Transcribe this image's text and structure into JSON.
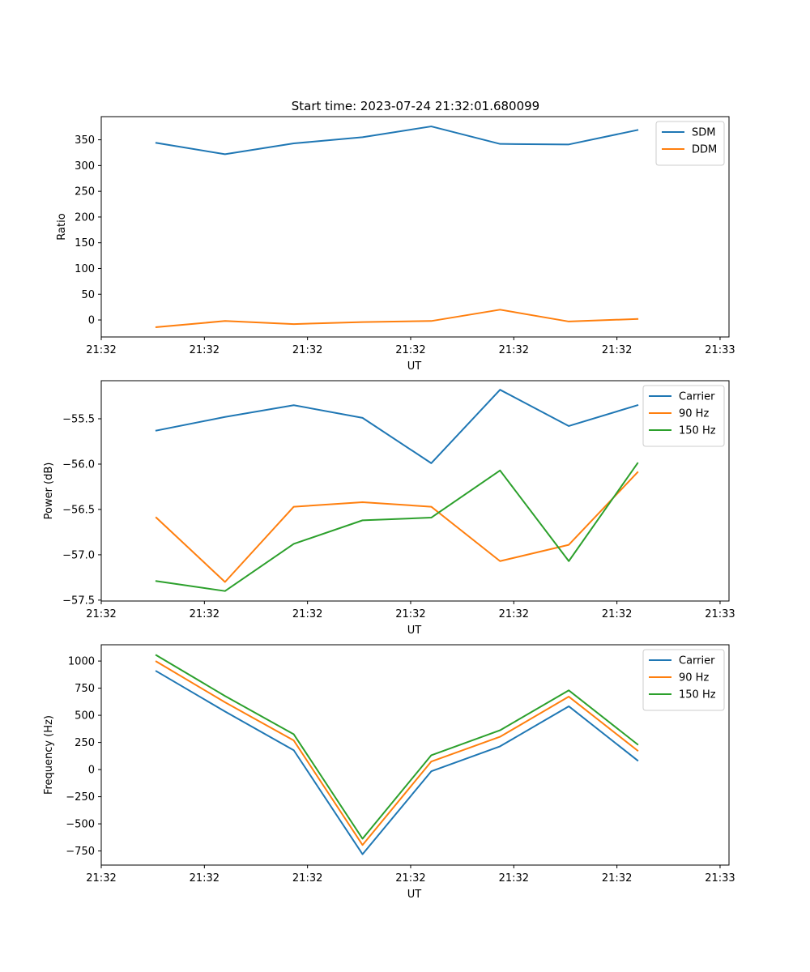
{
  "figure_title": "Start time: 2023-07-24 21:32:01.680099",
  "colors": {
    "blue": "#1f77b4",
    "orange": "#ff7f0e",
    "green": "#2ca02c"
  },
  "chart_data": [
    {
      "type": "line",
      "title": "Start time: 2023-07-24 21:32:01.680099",
      "xlabel": "UT",
      "ylabel": "Ratio",
      "legend_position": "top-right",
      "x": [
        1,
        2,
        3,
        4,
        5,
        6,
        7,
        8
      ],
      "xlim": [
        0.2,
        9.33
      ],
      "xticks": [
        0.2,
        1.7,
        3.2,
        4.7,
        6.2,
        7.7,
        9.2
      ],
      "xtick_labels": [
        "21:32",
        "21:32",
        "21:32",
        "21:32",
        "21:32",
        "21:32",
        "21:33"
      ],
      "ylim": [
        -33,
        395
      ],
      "yticks": [
        0,
        50,
        100,
        150,
        200,
        250,
        300,
        350
      ],
      "ytick_labels": [
        "0",
        "50",
        "100",
        "150",
        "200",
        "250",
        "300",
        "350"
      ],
      "series": [
        {
          "name": "SDM",
          "color": "#1f77b4",
          "values": [
            344,
            322,
            343,
            355,
            376,
            342,
            341,
            369
          ]
        },
        {
          "name": "DDM",
          "color": "#ff7f0e",
          "values": [
            -14,
            -2,
            -8,
            -4,
            -2,
            20,
            -3,
            2
          ]
        }
      ]
    },
    {
      "type": "line",
      "xlabel": "UT",
      "ylabel": "Power (dB)",
      "legend_position": "top-right",
      "x": [
        1,
        2,
        3,
        4,
        5,
        6,
        7,
        8
      ],
      "xlim": [
        0.2,
        9.33
      ],
      "xticks": [
        0.2,
        1.7,
        3.2,
        4.7,
        6.2,
        7.7,
        9.2
      ],
      "xtick_labels": [
        "21:32",
        "21:32",
        "21:32",
        "21:32",
        "21:32",
        "21:32",
        "21:33"
      ],
      "ylim": [
        -57.51,
        -55.08
      ],
      "yticks": [
        -57.5,
        -57.0,
        -56.5,
        -56.0,
        -55.5
      ],
      "ytick_labels": [
        "−57.5",
        "−57.0",
        "−56.5",
        "−56.0",
        "−55.5"
      ],
      "series": [
        {
          "name": "Carrier",
          "color": "#1f77b4",
          "values": [
            -55.63,
            -55.48,
            -55.35,
            -55.49,
            -55.99,
            -55.18,
            -55.58,
            -55.35
          ]
        },
        {
          "name": "90 Hz",
          "color": "#ff7f0e",
          "values": [
            -56.59,
            -57.3,
            -56.47,
            -56.42,
            -56.47,
            -57.07,
            -56.89,
            -56.09
          ]
        },
        {
          "name": "150 Hz",
          "color": "#2ca02c",
          "values": [
            -57.29,
            -57.4,
            -56.88,
            -56.62,
            -56.59,
            -56.07,
            -57.07,
            -55.99
          ]
        }
      ]
    },
    {
      "type": "line",
      "xlabel": "UT",
      "ylabel": "Frequency (Hz)",
      "legend_position": "top-right",
      "x": [
        1,
        2,
        3,
        4,
        5,
        6,
        7,
        8
      ],
      "xlim": [
        0.2,
        9.33
      ],
      "xticks": [
        0.2,
        1.7,
        3.2,
        4.7,
        6.2,
        7.7,
        9.2
      ],
      "xtick_labels": [
        "21:32",
        "21:32",
        "21:32",
        "21:32",
        "21:32",
        "21:32",
        "21:33"
      ],
      "ylim": [
        -880,
        1150
      ],
      "yticks": [
        -750,
        -500,
        -250,
        0,
        250,
        500,
        750,
        1000
      ],
      "ytick_labels": [
        "−750",
        "−500",
        "−250",
        "0",
        "250",
        "500",
        "750",
        "1000"
      ],
      "series": [
        {
          "name": "Carrier",
          "color": "#1f77b4",
          "values": [
            907,
            535,
            178,
            -780,
            -16,
            214,
            583,
            84
          ]
        },
        {
          "name": "90 Hz",
          "color": "#ff7f0e",
          "values": [
            996,
            620,
            268,
            -695,
            74,
            302,
            672,
            175
          ]
        },
        {
          "name": "150 Hz",
          "color": "#2ca02c",
          "values": [
            1054,
            678,
            325,
            -637,
            132,
            362,
            730,
            232
          ]
        }
      ]
    }
  ]
}
